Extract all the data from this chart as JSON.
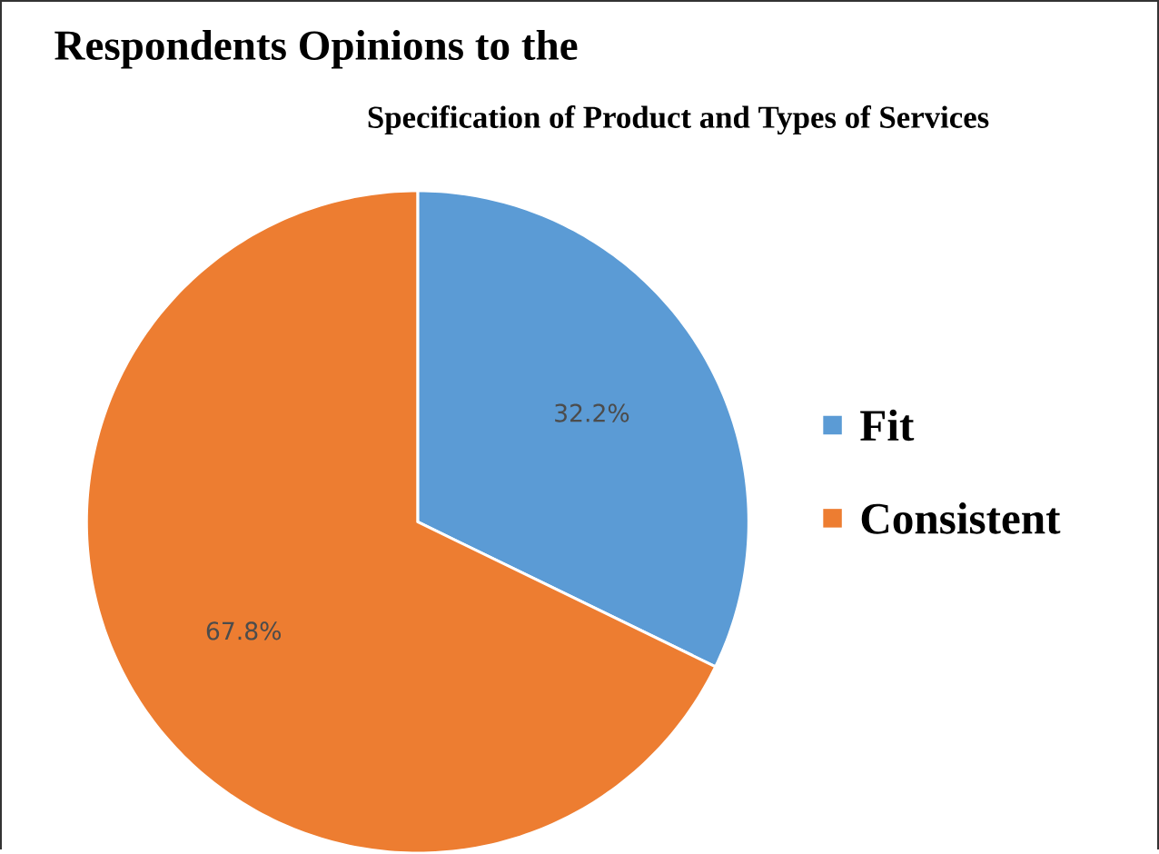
{
  "chart_data": {
    "type": "pie",
    "title": "Respondents Opinions to the",
    "subtitle": "Specification of Product and Types of Services",
    "categories": [
      "Fit",
      "Consistent"
    ],
    "values": [
      32.2,
      67.8
    ],
    "colors": [
      "#5b9bd5",
      "#ed7d31"
    ],
    "value_labels": [
      "32.2%",
      "67.8%"
    ],
    "legend": "right"
  }
}
